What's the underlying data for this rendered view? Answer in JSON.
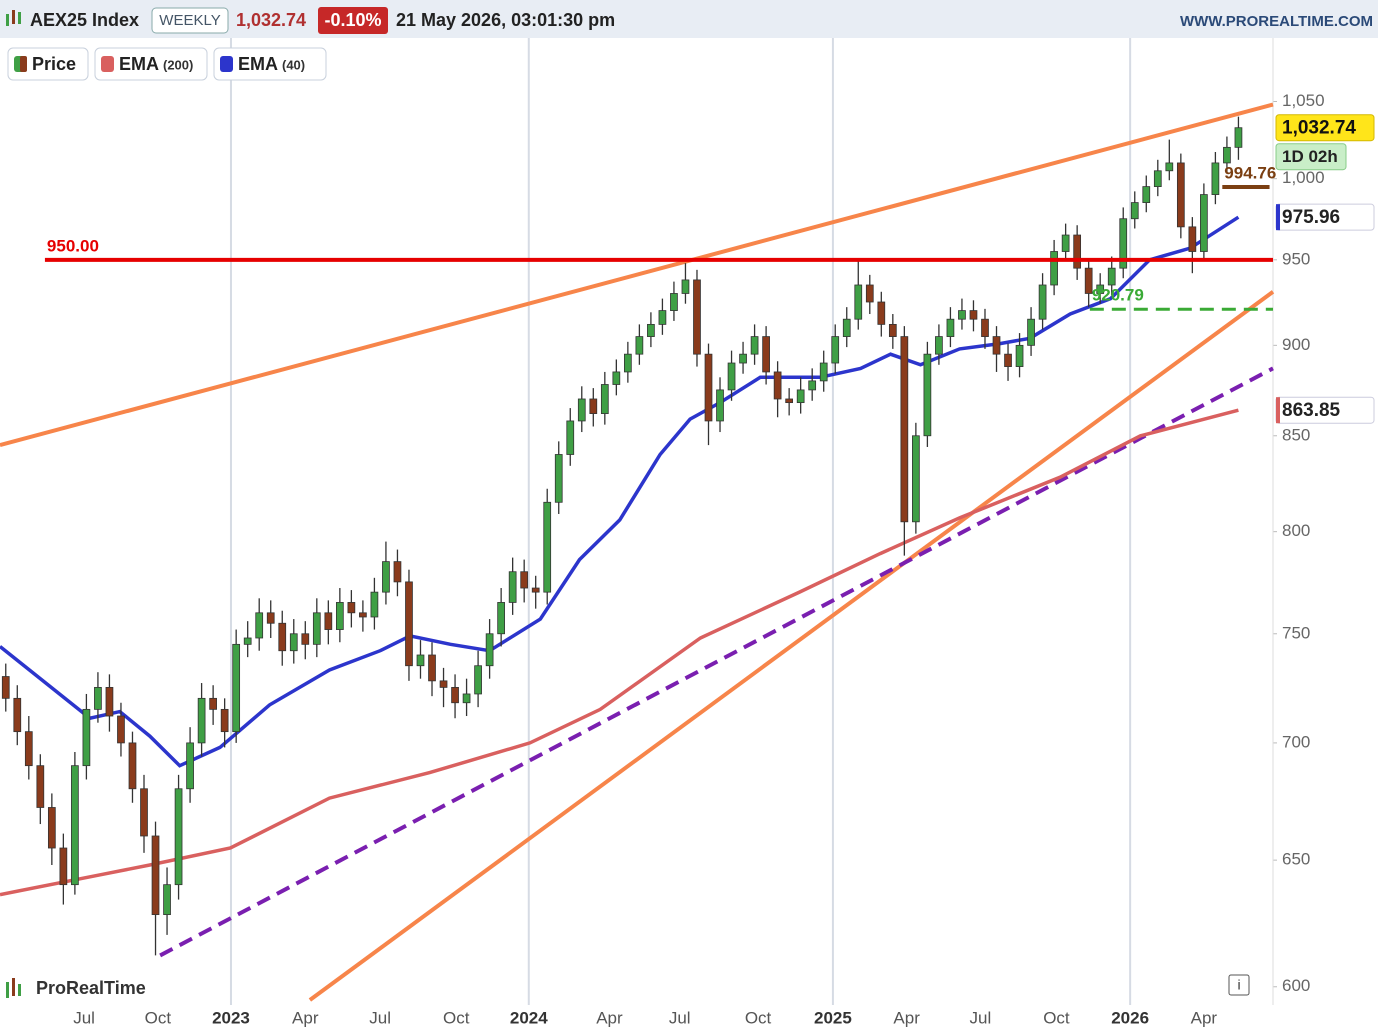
{
  "header": {
    "symbol": "AEX25 Index",
    "period": "WEEKLY",
    "change": "-0.10%",
    "datetime": "21 May 2026, 03:01:30 pm",
    "site": "WWW.PROREALTIME.COM"
  },
  "footer": {
    "brand": "ProRealTime",
    "info": "i"
  },
  "chart_data": {
    "type": "candlestick",
    "log_y": true,
    "xlim": [
      -0.5,
      110
    ],
    "ylim": [
      595,
      1093
    ],
    "yticks": [
      600,
      650,
      700,
      750,
      800,
      850,
      900,
      950,
      {
        "value": 1000,
        "label": "1,000"
      },
      {
        "value": 1050,
        "label": "1,050"
      }
    ],
    "xticks": [
      {
        "value": 6.8,
        "label": "Jul"
      },
      {
        "value": 13.2,
        "label": "Oct"
      },
      {
        "value": 19.55,
        "label": "2023",
        "year": true
      },
      {
        "value": 26,
        "label": "Apr"
      },
      {
        "value": 32.5,
        "label": "Jul"
      },
      {
        "value": 39.1,
        "label": "Oct"
      },
      {
        "value": 45.4,
        "label": "2024",
        "year": true
      },
      {
        "value": 52.4,
        "label": "Apr"
      },
      {
        "value": 58.5,
        "label": "Jul"
      },
      {
        "value": 65.3,
        "label": "Oct"
      },
      {
        "value": 71.8,
        "label": "2025",
        "year": true
      },
      {
        "value": 78.2,
        "label": "Apr"
      },
      {
        "value": 84.6,
        "label": "Jul"
      },
      {
        "value": 91.2,
        "label": "Oct"
      },
      {
        "value": 97.6,
        "label": "2026",
        "year": true
      },
      {
        "value": 104,
        "label": "Apr"
      }
    ],
    "last": {
      "value": 1032.74,
      "label": "1,032.74"
    },
    "countdown": "1D 02h",
    "candles": {
      "name": "Price",
      "up_color": "#3f9f45",
      "down_color": "#8a3b1c",
      "ohlc": [
        [
          730,
          736,
          714,
          720
        ],
        [
          720,
          726,
          699,
          705
        ],
        [
          705,
          712,
          684,
          690
        ],
        [
          690,
          695,
          665,
          672
        ],
        [
          672,
          678,
          648,
          655
        ],
        [
          655,
          661,
          632,
          640
        ],
        [
          640,
          696,
          636,
          690
        ],
        [
          690,
          722,
          684,
          715
        ],
        [
          715,
          732,
          709,
          725
        ],
        [
          725,
          731,
          705,
          712
        ],
        [
          712,
          718,
          694,
          700
        ],
        [
          700,
          705,
          674,
          680
        ],
        [
          680,
          686,
          653,
          660
        ],
        [
          660,
          666,
          612,
          628
        ],
        [
          628,
          647,
          620,
          640
        ],
        [
          640,
          686,
          634,
          680
        ],
        [
          680,
          707,
          674,
          700
        ],
        [
          700,
          727,
          694,
          720
        ],
        [
          720,
          726,
          708,
          715
        ],
        [
          715,
          720,
          698,
          705
        ],
        [
          705,
          752,
          700,
          745
        ],
        [
          745,
          756,
          739,
          748
        ],
        [
          748,
          767,
          742,
          760
        ],
        [
          760,
          766,
          748,
          755
        ],
        [
          755,
          761,
          735,
          742
        ],
        [
          742,
          757,
          736,
          750
        ],
        [
          750,
          756,
          738,
          745
        ],
        [
          745,
          767,
          739,
          760
        ],
        [
          760,
          766,
          745,
          752
        ],
        [
          752,
          772,
          746,
          765
        ],
        [
          765,
          771,
          753,
          760
        ],
        [
          760,
          766,
          751,
          758
        ],
        [
          758,
          777,
          752,
          770
        ],
        [
          770,
          795,
          764,
          785
        ],
        [
          785,
          791,
          768,
          775
        ],
        [
          775,
          781,
          728,
          735
        ],
        [
          735,
          747,
          729,
          740
        ],
        [
          740,
          746,
          721,
          728
        ],
        [
          728,
          734,
          716,
          725
        ],
        [
          725,
          731,
          711,
          718
        ],
        [
          718,
          729,
          712,
          722
        ],
        [
          722,
          742,
          716,
          735
        ],
        [
          735,
          757,
          729,
          750
        ],
        [
          750,
          772,
          744,
          765
        ],
        [
          765,
          787,
          759,
          780
        ],
        [
          780,
          786,
          765,
          772
        ],
        [
          772,
          778,
          762,
          770
        ],
        [
          770,
          822,
          764,
          815
        ],
        [
          815,
          847,
          809,
          840
        ],
        [
          840,
          865,
          834,
          858
        ],
        [
          858,
          877,
          852,
          870
        ],
        [
          870,
          876,
          855,
          862
        ],
        [
          862,
          885,
          856,
          878
        ],
        [
          878,
          892,
          872,
          885
        ],
        [
          885,
          902,
          879,
          895
        ],
        [
          895,
          912,
          889,
          905
        ],
        [
          905,
          919,
          899,
          912
        ],
        [
          912,
          927,
          906,
          920
        ],
        [
          920,
          937,
          914,
          930
        ],
        [
          930,
          948,
          924,
          938
        ],
        [
          938,
          944,
          888,
          895
        ],
        [
          895,
          901,
          845,
          858
        ],
        [
          858,
          882,
          852,
          875
        ],
        [
          875,
          897,
          869,
          890
        ],
        [
          890,
          902,
          884,
          895
        ],
        [
          895,
          912,
          889,
          905
        ],
        [
          905,
          911,
          878,
          885
        ],
        [
          885,
          891,
          860,
          870
        ],
        [
          870,
          876,
          861,
          868
        ],
        [
          868,
          882,
          862,
          875
        ],
        [
          875,
          887,
          869,
          880
        ],
        [
          880,
          897,
          874,
          890
        ],
        [
          890,
          912,
          884,
          905
        ],
        [
          905,
          922,
          899,
          915
        ],
        [
          915,
          950,
          909,
          935
        ],
        [
          935,
          941,
          918,
          925
        ],
        [
          925,
          931,
          905,
          912
        ],
        [
          912,
          918,
          898,
          905
        ],
        [
          905,
          911,
          788,
          805
        ],
        [
          805,
          857,
          799,
          850
        ],
        [
          850,
          902,
          844,
          895
        ],
        [
          895,
          912,
          889,
          905
        ],
        [
          905,
          922,
          899,
          915
        ],
        [
          915,
          927,
          909,
          920
        ],
        [
          920,
          926,
          908,
          915
        ],
        [
          915,
          921,
          898,
          905
        ],
        [
          905,
          911,
          885,
          895
        ],
        [
          895,
          901,
          880,
          888
        ],
        [
          888,
          907,
          882,
          900
        ],
        [
          900,
          922,
          894,
          915
        ],
        [
          915,
          942,
          909,
          935
        ],
        [
          935,
          962,
          929,
          955
        ],
        [
          955,
          972,
          949,
          965
        ],
        [
          965,
          971,
          938,
          945
        ],
        [
          945,
          951,
          922,
          930
        ],
        [
          930,
          942,
          924,
          935
        ],
        [
          935,
          952,
          929,
          945
        ],
        [
          945,
          982,
          939,
          975
        ],
        [
          975,
          992,
          969,
          985
        ],
        [
          985,
          1002,
          979,
          995
        ],
        [
          995,
          1012,
          989,
          1005
        ],
        [
          1005,
          1025,
          999,
          1010
        ],
        [
          1010,
          1016,
          963,
          970
        ],
        [
          970,
          976,
          942,
          955
        ],
        [
          955,
          997,
          949,
          990
        ],
        [
          990,
          1017,
          984,
          1010
        ],
        [
          1010,
          1027,
          1004,
          1020
        ],
        [
          1020,
          1040,
          1012,
          1032.74
        ]
      ]
    },
    "series": [
      {
        "name": "EMA",
        "period": "(200)",
        "color": "#d9605f",
        "x": [
          -0.5,
          8.2,
          12.5,
          19.5,
          28.1,
          36.8,
          45.5,
          51.6,
          60.3,
          68.9,
          75.9,
          82.8,
          91.5,
          98.5,
          107
        ],
        "values": [
          636,
          644,
          648,
          655,
          676,
          687,
          700,
          715,
          748,
          770,
          789,
          807,
          828,
          850,
          863.85
        ]
      },
      {
        "name": "EMA",
        "period": "(40)",
        "color": "#2c35cc",
        "x": [
          -0.5,
          7.3,
          9.9,
          12.5,
          15.1,
          18.6,
          22.9,
          28.1,
          32.5,
          35.1,
          38.6,
          42.0,
          46.4,
          49.8,
          53.3,
          56.8,
          59.4,
          62.0,
          65.5,
          70.7,
          74.2,
          76.8,
          79.4,
          82.8,
          86.3,
          88.9,
          92.4,
          95.9,
          99.3,
          102.8,
          107
        ],
        "values": [
          744,
          711,
          714,
          703,
          690,
          698,
          717,
          733,
          742,
          749,
          745,
          742,
          757,
          786,
          806,
          840,
          859,
          868,
          882,
          882,
          887,
          895,
          889,
          898,
          901,
          904,
          918,
          927,
          950,
          957,
          975.96
        ]
      }
    ],
    "trendlines": [
      {
        "color": "#f7854a",
        "dashed": false,
        "x": [
          -0.5,
          110
        ],
        "values": [
          845,
          1048
        ]
      },
      {
        "color": "#f7854a",
        "dashed": false,
        "x": [
          26.4,
          110
        ],
        "values": [
          595,
          931
        ]
      },
      {
        "color": "#7a1fb0",
        "dashed": true,
        "x": [
          13.4,
          110
        ],
        "values": [
          612,
          887
        ]
      }
    ],
    "levels": [
      {
        "value": 950,
        "label": "950.00",
        "color": "#e60000",
        "dashed": false,
        "x": [
          3.4,
          110
        ]
      },
      {
        "value": 920.79,
        "label": "920.79",
        "color": "#3aaa35",
        "dashed": true,
        "x": [
          94.1,
          110
        ]
      },
      {
        "value": 994.76,
        "label": "994.76",
        "color": "#7b3f12",
        "dashed": false,
        "x": [
          105.6,
          109.7
        ]
      }
    ]
  }
}
